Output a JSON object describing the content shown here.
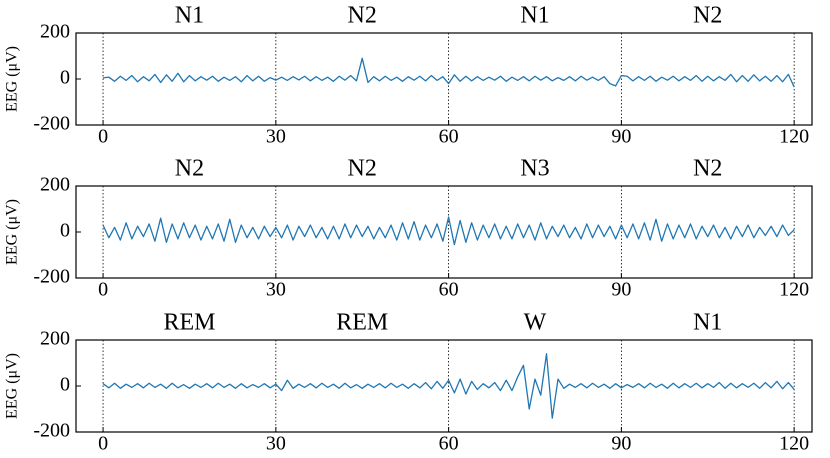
{
  "chart_data": [
    {
      "type": "line",
      "ylabel": "EEG (μV)",
      "stages": [
        "N1",
        "N2",
        "N1",
        "N2"
      ],
      "x": [
        0,
        1,
        2,
        3,
        4,
        5,
        6,
        7,
        8,
        9,
        10,
        11,
        12,
        13,
        14,
        15,
        16,
        17,
        18,
        19,
        20,
        21,
        22,
        23,
        24,
        25,
        26,
        27,
        28,
        29,
        30,
        31,
        32,
        33,
        34,
        35,
        36,
        37,
        38,
        39,
        40,
        41,
        42,
        43,
        44,
        45,
        46,
        47,
        48,
        49,
        50,
        51,
        52,
        53,
        54,
        55,
        56,
        57,
        58,
        59,
        60,
        61,
        62,
        63,
        64,
        65,
        66,
        67,
        68,
        69,
        70,
        71,
        72,
        73,
        74,
        75,
        76,
        77,
        78,
        79,
        80,
        81,
        82,
        83,
        84,
        85,
        86,
        87,
        88,
        89,
        90,
        91,
        92,
        93,
        94,
        95,
        96,
        97,
        98,
        99,
        100,
        101,
        102,
        103,
        104,
        105,
        106,
        107,
        108,
        109,
        110,
        111,
        112,
        113,
        114,
        115,
        116,
        117,
        118,
        119,
        120
      ],
      "series": [
        {
          "color": "#1f77b4",
          "values": [
            5,
            8,
            -10,
            12,
            -6,
            15,
            -12,
            10,
            -8,
            20,
            -15,
            18,
            -10,
            25,
            -12,
            15,
            -8,
            10,
            -5,
            12,
            -10,
            8,
            -6,
            10,
            -12,
            15,
            -8,
            12,
            -10,
            6,
            -5,
            8,
            -6,
            10,
            -4,
            12,
            -8,
            10,
            -6,
            8,
            -10,
            12,
            -5,
            15,
            -8,
            90,
            -15,
            10,
            -8,
            12,
            -6,
            8,
            -10,
            10,
            -5,
            12,
            -8,
            15,
            -6,
            10,
            -20,
            18,
            -10,
            12,
            -8,
            10,
            -6,
            8,
            -5,
            12,
            -10,
            8,
            -6,
            10,
            -8,
            12,
            -5,
            10,
            -8,
            6,
            -6,
            10,
            -8,
            12,
            -5,
            8,
            -6,
            10,
            -20,
            -30,
            15,
            12,
            -8,
            10,
            -6,
            12,
            -10,
            8,
            -5,
            12,
            -8,
            10,
            -6,
            15,
            -10,
            12,
            -8,
            10,
            -6,
            20,
            -12,
            15,
            -10,
            18,
            -8,
            12,
            -10,
            15,
            -12,
            20,
            -35
          ]
        }
      ],
      "xlim": [
        -4.7,
        123.1
      ],
      "ylim": [
        -200,
        200
      ],
      "xticks": [
        0,
        30,
        60,
        90,
        120
      ],
      "yticks": [
        -200,
        0,
        200
      ],
      "grid": true
    },
    {
      "type": "line",
      "ylabel": "EEG (μV)",
      "stages": [
        "N2",
        "N2",
        "N3",
        "N2"
      ],
      "x": [
        0,
        1,
        2,
        3,
        4,
        5,
        6,
        7,
        8,
        9,
        10,
        11,
        12,
        13,
        14,
        15,
        16,
        17,
        18,
        19,
        20,
        21,
        22,
        23,
        24,
        25,
        26,
        27,
        28,
        29,
        30,
        31,
        32,
        33,
        34,
        35,
        36,
        37,
        38,
        39,
        40,
        41,
        42,
        43,
        44,
        45,
        46,
        47,
        48,
        49,
        50,
        51,
        52,
        53,
        54,
        55,
        56,
        57,
        58,
        59,
        60,
        61,
        62,
        63,
        64,
        65,
        66,
        67,
        68,
        69,
        70,
        71,
        72,
        73,
        74,
        75,
        76,
        77,
        78,
        79,
        80,
        81,
        82,
        83,
        84,
        85,
        86,
        87,
        88,
        89,
        90,
        91,
        92,
        93,
        94,
        95,
        96,
        97,
        98,
        99,
        100,
        101,
        102,
        103,
        104,
        105,
        106,
        107,
        108,
        109,
        110,
        111,
        112,
        113,
        114,
        115,
        116,
        117,
        118,
        119,
        120
      ],
      "series": [
        {
          "color": "#1f77b4",
          "values": [
            30,
            -25,
            20,
            -35,
            40,
            -30,
            25,
            -20,
            35,
            -40,
            60,
            -45,
            35,
            -30,
            40,
            -25,
            30,
            -35,
            25,
            -30,
            35,
            -40,
            55,
            -45,
            30,
            -25,
            20,
            -30,
            25,
            -20,
            20,
            -25,
            30,
            -35,
            25,
            -20,
            30,
            -25,
            20,
            -30,
            25,
            -30,
            35,
            -25,
            30,
            -20,
            25,
            -30,
            20,
            -25,
            30,
            -35,
            40,
            -30,
            45,
            -35,
            30,
            -25,
            35,
            -40,
            65,
            -55,
            50,
            -45,
            40,
            -35,
            30,
            -25,
            35,
            -30,
            25,
            -30,
            35,
            -25,
            30,
            -35,
            40,
            -30,
            25,
            -20,
            30,
            -25,
            20,
            -30,
            35,
            -25,
            30,
            -20,
            25,
            -30,
            30,
            -25,
            35,
            -30,
            40,
            -35,
            55,
            -40,
            35,
            -30,
            30,
            -25,
            35,
            -30,
            25,
            -20,
            30,
            -25,
            20,
            -30,
            25,
            -20,
            30,
            -25,
            20,
            -15,
            25,
            -20,
            30,
            -15,
            10
          ]
        }
      ],
      "xlim": [
        -4.7,
        123.1
      ],
      "ylim": [
        -200,
        200
      ],
      "xticks": [
        0,
        30,
        60,
        90,
        120
      ],
      "yticks": [
        -200,
        0,
        200
      ],
      "grid": true
    },
    {
      "type": "line",
      "ylabel": "EEG (μV)",
      "stages": [
        "REM",
        "REM",
        "W",
        "N1"
      ],
      "x": [
        0,
        1,
        2,
        3,
        4,
        5,
        6,
        7,
        8,
        9,
        10,
        11,
        12,
        13,
        14,
        15,
        16,
        17,
        18,
        19,
        20,
        21,
        22,
        23,
        24,
        25,
        26,
        27,
        28,
        29,
        30,
        31,
        32,
        33,
        34,
        35,
        36,
        37,
        38,
        39,
        40,
        41,
        42,
        43,
        44,
        45,
        46,
        47,
        48,
        49,
        50,
        51,
        52,
        53,
        54,
        55,
        56,
        57,
        58,
        59,
        60,
        61,
        62,
        63,
        64,
        65,
        66,
        67,
        68,
        69,
        70,
        71,
        72,
        73,
        74,
        75,
        76,
        77,
        78,
        79,
        80,
        81,
        82,
        83,
        84,
        85,
        86,
        87,
        88,
        89,
        90,
        91,
        92,
        93,
        94,
        95,
        96,
        97,
        98,
        99,
        100,
        101,
        102,
        103,
        104,
        105,
        106,
        107,
        108,
        109,
        110,
        111,
        112,
        113,
        114,
        115,
        116,
        117,
        118,
        119,
        120
      ],
      "series": [
        {
          "color": "#1f77b4",
          "values": [
            10,
            -8,
            12,
            -10,
            8,
            -6,
            10,
            -8,
            12,
            -6,
            8,
            -10,
            12,
            -8,
            6,
            -10,
            8,
            -6,
            10,
            -8,
            12,
            -6,
            8,
            -10,
            10,
            -8,
            6,
            -6,
            10,
            -8,
            8,
            -20,
            25,
            -10,
            8,
            -6,
            10,
            -8,
            12,
            -6,
            8,
            -10,
            12,
            -8,
            6,
            -10,
            8,
            -6,
            10,
            -8,
            12,
            -6,
            8,
            -10,
            10,
            -8,
            15,
            -12,
            20,
            -10,
            25,
            -30,
            30,
            -35,
            20,
            -15,
            10,
            -8,
            15,
            -20,
            25,
            -20,
            40,
            90,
            -100,
            30,
            -40,
            140,
            -140,
            30,
            -10,
            8,
            -6,
            10,
            -8,
            12,
            -6,
            8,
            -10,
            10,
            -8,
            6,
            -6,
            10,
            -8,
            12,
            -6,
            8,
            -10,
            12,
            -8,
            10,
            -6,
            12,
            -8,
            10,
            -6,
            15,
            -10,
            12,
            -8,
            10,
            -6,
            12,
            -10,
            15,
            -8,
            20,
            -12,
            15,
            -15
          ]
        }
      ],
      "xlim": [
        -4.7,
        123.1
      ],
      "ylim": [
        -200,
        200
      ],
      "xticks": [
        0,
        30,
        60,
        90,
        120
      ],
      "yticks": [
        -200,
        0,
        200
      ],
      "grid": true
    }
  ]
}
